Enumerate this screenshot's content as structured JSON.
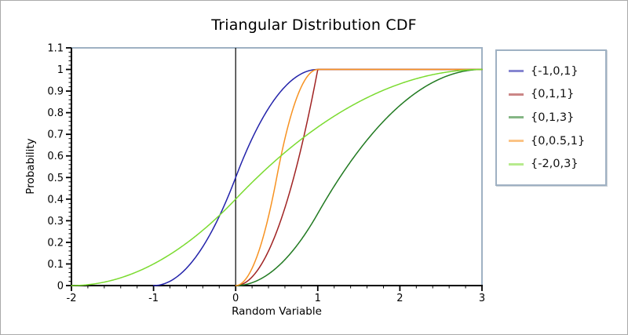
{
  "frame": {
    "background": "#ffffff",
    "border_color": "#aaaaaa"
  },
  "chart_data": {
    "type": "line",
    "title": "Triangular Distribution CDF",
    "xlabel": "Random Variable",
    "ylabel": "Probability",
    "xlim": [
      -2,
      3
    ],
    "ylim": [
      0,
      1.1
    ],
    "grid": false,
    "legend_position": "right",
    "axis_color": "#000000",
    "frame_color": "#9fb1c3",
    "zero_axis_x": 0,
    "x_ticks": [
      {
        "v": -2,
        "label": "-2"
      },
      {
        "v": -1,
        "label": "-1"
      },
      {
        "v": 0,
        "label": "0"
      },
      {
        "v": 1,
        "label": "1"
      },
      {
        "v": 2,
        "label": "2"
      },
      {
        "v": 3,
        "label": "3"
      }
    ],
    "y_ticks": [
      {
        "v": 0,
        "label": "0"
      },
      {
        "v": 0.1,
        "label": "0.1"
      },
      {
        "v": 0.2,
        "label": "0.2"
      },
      {
        "v": 0.3,
        "label": "0.3"
      },
      {
        "v": 0.4,
        "label": "0.4"
      },
      {
        "v": 0.5,
        "label": "0.5"
      },
      {
        "v": 0.6,
        "label": "0.6"
      },
      {
        "v": 0.7,
        "label": "0.7"
      },
      {
        "v": 0.8,
        "label": "0.8"
      },
      {
        "v": 0.9,
        "label": "0.9"
      },
      {
        "v": 1,
        "label": "1"
      },
      {
        "v": 1.1,
        "label": "1.1"
      }
    ],
    "x_minor_step": 0.2,
    "y_minor_step": 0.02,
    "distribution": "triangular",
    "param_order": [
      "min",
      "mode",
      "max"
    ],
    "series": [
      {
        "label": "{-1,0,1}",
        "min": -1,
        "mode": 0,
        "max": 1,
        "color": "#2323aa",
        "cdf_at_mode": 0.5
      },
      {
        "label": "{0,1,1}",
        "min": 0,
        "mode": 1,
        "max": 1,
        "color": "#a02323",
        "cdf_at_mode": 1.0
      },
      {
        "label": "{0,1,3}",
        "min": 0,
        "mode": 1,
        "max": 3,
        "color": "#217a21",
        "cdf_at_mode": 0.333
      },
      {
        "label": "{0,0.5,1}",
        "min": 0,
        "mode": 0.5,
        "max": 1,
        "color": "#f79221",
        "cdf_at_mode": 0.5
      },
      {
        "label": "{-2,0,3}",
        "min": -2,
        "mode": 0,
        "max": 3,
        "color": "#7bdb30",
        "cdf_at_mode": 0.4
      }
    ]
  }
}
